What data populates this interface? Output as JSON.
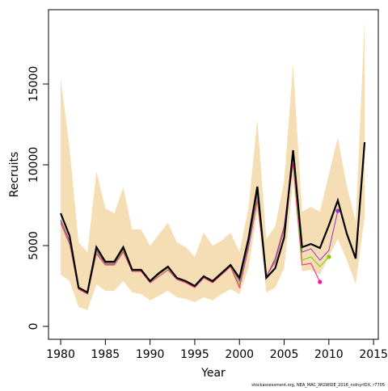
{
  "chart_data": {
    "type": "line",
    "x_label": "Year",
    "y_label": "Recruits",
    "footnote": "stockassessment.org, NEA_MAC_WGWIDE_2016_noInyrIDX, r7705",
    "x": [
      1980,
      1981,
      1982,
      1983,
      1984,
      1985,
      1986,
      1987,
      1988,
      1989,
      1990,
      1991,
      1992,
      1993,
      1994,
      1995,
      1996,
      1997,
      1998,
      1999,
      2000,
      2001,
      2002,
      2003,
      2004,
      2005,
      2006,
      2007,
      2008,
      2009,
      2010,
      2011,
      2012,
      2013,
      2014
    ],
    "band": {
      "color": "#f5deb3",
      "upper": [
        15400,
        11000,
        5200,
        4600,
        9600,
        7300,
        7000,
        8600,
        6000,
        6000,
        5000,
        5700,
        6400,
        5200,
        4900,
        4300,
        5800,
        5000,
        5300,
        5800,
        4600,
        7300,
        12800,
        5400,
        6200,
        9000,
        16200,
        7100,
        7400,
        7100,
        9400,
        11700,
        8700,
        6500,
        18900
      ],
      "lower": [
        3200,
        2800,
        1200,
        1000,
        2600,
        2200,
        2200,
        2800,
        2100,
        2000,
        1600,
        1900,
        2200,
        1800,
        1700,
        1500,
        1800,
        1600,
        2000,
        2300,
        2000,
        3600,
        7100,
        2100,
        2400,
        3600,
        9000,
        3400,
        3500,
        3200,
        4300,
        5400,
        4100,
        2600,
        6800
      ]
    },
    "series": [
      {
        "color": "#ff1493",
        "values": [
          6400,
          5100,
          2300,
          2000,
          4500,
          3800,
          3800,
          4600,
          3400,
          3400,
          2700,
          3100,
          3500,
          2900,
          2700,
          2400,
          3000,
          2700,
          3200,
          3700,
          2400,
          4800,
          7800,
          3100,
          4000,
          6000,
          10100,
          3800,
          3900,
          2750,
          null,
          null,
          null,
          null,
          null
        ]
      },
      {
        "color": "#7fcc00",
        "values": [
          6500,
          5200,
          2350,
          2050,
          4600,
          3850,
          3850,
          4700,
          3450,
          3450,
          2750,
          3200,
          3600,
          2950,
          2750,
          2450,
          3050,
          2750,
          3250,
          3750,
          2600,
          4900,
          8000,
          3100,
          4100,
          6100,
          10400,
          4100,
          4300,
          3700,
          4300,
          null,
          null,
          null,
          null
        ]
      },
      {
        "color": "#9b30c8",
        "values": [
          6600,
          5300,
          2400,
          2100,
          4700,
          3900,
          3900,
          4800,
          3500,
          3500,
          2800,
          3250,
          3650,
          3000,
          2800,
          2500,
          3100,
          2800,
          3300,
          3800,
          2800,
          5000,
          8300,
          3050,
          4200,
          6200,
          10600,
          4600,
          4800,
          4100,
          4700,
          7150,
          null,
          null,
          null
        ]
      },
      {
        "color": "#000000",
        "values": [
          7000,
          5600,
          2400,
          2100,
          4900,
          4000,
          4000,
          4900,
          3500,
          3500,
          2800,
          3300,
          3700,
          3000,
          2800,
          2500,
          3100,
          2800,
          3300,
          3800,
          3000,
          5400,
          8650,
          3000,
          3600,
          5500,
          10900,
          4900,
          5100,
          4850,
          6250,
          7800,
          5750,
          4200,
          11400
        ]
      }
    ],
    "xlim": [
      1978.64,
      2015.53
    ],
    "ylim": [
      -800,
      19600
    ],
    "xticks": [
      1980,
      1985,
      1990,
      1995,
      2000,
      2005,
      2010,
      2015
    ],
    "yticks": [
      0,
      5000,
      10000,
      15000
    ]
  }
}
